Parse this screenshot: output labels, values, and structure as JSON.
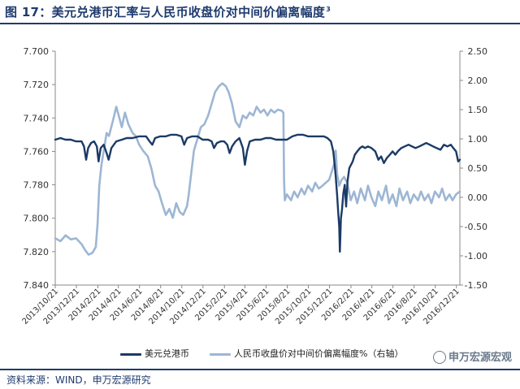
{
  "title": {
    "text": "图 17：美元兑港币汇率与人民币收盘价对中间价偏离幅度",
    "superscript": "3"
  },
  "source": "资料来源：WIND，申万宏源研究",
  "watermark": "申万宏源宏观",
  "colors": {
    "hkd": "#1b3a66",
    "cny": "#9db6d4",
    "accent": "#1f3b6e"
  },
  "chart_data": {
    "type": "line",
    "title": "美元兑港币汇率与人民币收盘价对中间价偏离幅度",
    "left_axis": {
      "ylim": [
        7.84,
        7.7
      ],
      "inverted": true,
      "ticks": [
        "7.700",
        "7.720",
        "7.740",
        "7.760",
        "7.780",
        "7.800",
        "7.820",
        "7.840"
      ]
    },
    "right_axis": {
      "ylim": [
        -1.5,
        2.5
      ],
      "inverted": true,
      "ticks": [
        "-1.50",
        "-1.00",
        "-0.50",
        "0.00",
        "0.50",
        "1.00",
        "1.50",
        "2.00",
        "2.50"
      ]
    },
    "x_ticks": [
      "2013/10/21",
      "2013/12/21",
      "2014/2/21",
      "2014/4/21",
      "2014/6/21",
      "2014/8/21",
      "2014/10/21",
      "2014/12/21",
      "2015/2/21",
      "2015/4/21",
      "2015/6/21",
      "2015/8/21",
      "2015/10/21",
      "2015/12/21",
      "2016/2/21",
      "2016/4/21",
      "2016/6/21",
      "2016/8/21",
      "2016/10/21",
      "2016/12/21"
    ],
    "x_range": [
      "2013-10-21",
      "2016-12-31"
    ],
    "legend_position": "bottom",
    "grid": false,
    "series": [
      {
        "name": "美元兑港币",
        "axis": "left",
        "color": "#1b3a66",
        "points": [
          [
            "2013-10-21",
            7.753
          ],
          [
            "2013-11-05",
            7.752
          ],
          [
            "2013-11-20",
            7.753
          ],
          [
            "2013-12-05",
            7.753
          ],
          [
            "2013-12-20",
            7.754
          ],
          [
            "2014-01-05",
            7.754
          ],
          [
            "2014-01-12",
            7.757
          ],
          [
            "2014-01-18",
            7.765
          ],
          [
            "2014-01-24",
            7.758
          ],
          [
            "2014-02-01",
            7.755
          ],
          [
            "2014-02-10",
            7.754
          ],
          [
            "2014-02-18",
            7.757
          ],
          [
            "2014-02-23",
            7.766
          ],
          [
            "2014-03-01",
            7.758
          ],
          [
            "2014-03-10",
            7.756
          ],
          [
            "2014-03-18",
            7.761
          ],
          [
            "2014-03-24",
            7.765
          ],
          [
            "2014-04-01",
            7.758
          ],
          [
            "2014-04-15",
            7.754
          ],
          [
            "2014-05-01",
            7.753
          ],
          [
            "2014-05-15",
            7.752
          ],
          [
            "2014-06-01",
            7.752
          ],
          [
            "2014-06-20",
            7.751
          ],
          [
            "2014-07-10",
            7.751
          ],
          [
            "2014-07-20",
            7.754
          ],
          [
            "2014-07-28",
            7.756
          ],
          [
            "2014-08-05",
            7.752
          ],
          [
            "2014-08-20",
            7.751
          ],
          [
            "2014-09-05",
            7.751
          ],
          [
            "2014-09-20",
            7.75
          ],
          [
            "2014-10-05",
            7.75
          ],
          [
            "2014-10-20",
            7.751
          ],
          [
            "2014-10-28",
            7.756
          ],
          [
            "2014-11-05",
            7.752
          ],
          [
            "2014-11-20",
            7.751
          ],
          [
            "2014-12-05",
            7.751
          ],
          [
            "2014-12-20",
            7.753
          ],
          [
            "2015-01-05",
            7.753
          ],
          [
            "2015-01-15",
            7.754
          ],
          [
            "2015-01-22",
            7.758
          ],
          [
            "2015-01-30",
            7.755
          ],
          [
            "2015-02-10",
            7.754
          ],
          [
            "2015-02-20",
            7.754
          ],
          [
            "2015-03-01",
            7.756
          ],
          [
            "2015-03-08",
            7.761
          ],
          [
            "2015-03-15",
            7.757
          ],
          [
            "2015-03-25",
            7.754
          ],
          [
            "2015-04-05",
            7.752
          ],
          [
            "2015-04-15",
            7.758
          ],
          [
            "2015-04-21",
            7.768
          ],
          [
            "2015-04-27",
            7.76
          ],
          [
            "2015-05-05",
            7.754
          ],
          [
            "2015-05-20",
            7.753
          ],
          [
            "2015-06-05",
            7.753
          ],
          [
            "2015-06-20",
            7.752
          ],
          [
            "2015-07-05",
            7.752
          ],
          [
            "2015-07-20",
            7.753
          ],
          [
            "2015-08-05",
            7.753
          ],
          [
            "2015-08-20",
            7.753
          ],
          [
            "2015-09-05",
            7.751
          ],
          [
            "2015-09-20",
            7.75
          ],
          [
            "2015-10-05",
            7.75
          ],
          [
            "2015-10-20",
            7.751
          ],
          [
            "2015-11-05",
            7.751
          ],
          [
            "2015-11-20",
            7.751
          ],
          [
            "2015-12-05",
            7.751
          ],
          [
            "2015-12-15",
            7.752
          ],
          [
            "2015-12-25",
            7.754
          ],
          [
            "2016-01-01",
            7.76
          ],
          [
            "2016-01-05",
            7.768
          ],
          [
            "2016-01-08",
            7.775
          ],
          [
            "2016-01-12",
            7.786
          ],
          [
            "2016-01-15",
            7.796
          ],
          [
            "2016-01-18",
            7.805
          ],
          [
            "2016-01-20",
            7.82
          ],
          [
            "2016-01-23",
            7.8
          ],
          [
            "2016-01-26",
            7.795
          ],
          [
            "2016-01-30",
            7.785
          ],
          [
            "2016-02-03",
            7.78
          ],
          [
            "2016-02-07",
            7.793
          ],
          [
            "2016-02-11",
            7.778
          ],
          [
            "2016-02-16",
            7.77
          ],
          [
            "2016-02-21",
            7.768
          ],
          [
            "2016-02-26",
            7.766
          ],
          [
            "2016-03-03",
            7.762
          ],
          [
            "2016-03-10",
            7.76
          ],
          [
            "2016-03-18",
            7.758
          ],
          [
            "2016-03-25",
            7.757
          ],
          [
            "2016-04-01",
            7.758
          ],
          [
            "2016-04-10",
            7.757
          ],
          [
            "2016-04-20",
            7.758
          ],
          [
            "2016-05-01",
            7.76
          ],
          [
            "2016-05-10",
            7.765
          ],
          [
            "2016-05-18",
            7.763
          ],
          [
            "2016-05-26",
            7.767
          ],
          [
            "2016-06-03",
            7.764
          ],
          [
            "2016-06-12",
            7.762
          ],
          [
            "2016-06-20",
            7.76
          ],
          [
            "2016-06-28",
            7.762
          ],
          [
            "2016-07-05",
            7.76
          ],
          [
            "2016-07-15",
            7.758
          ],
          [
            "2016-07-25",
            7.757
          ],
          [
            "2016-08-05",
            7.756
          ],
          [
            "2016-08-15",
            7.757
          ],
          [
            "2016-08-25",
            7.758
          ],
          [
            "2016-09-05",
            7.757
          ],
          [
            "2016-09-15",
            7.756
          ],
          [
            "2016-09-25",
            7.755
          ],
          [
            "2016-10-05",
            7.756
          ],
          [
            "2016-10-15",
            7.757
          ],
          [
            "2016-10-25",
            7.758
          ],
          [
            "2016-11-05",
            7.759
          ],
          [
            "2016-11-15",
            7.756
          ],
          [
            "2016-11-25",
            7.757
          ],
          [
            "2016-12-05",
            7.756
          ],
          [
            "2016-12-12",
            7.758
          ],
          [
            "2016-12-20",
            7.76
          ],
          [
            "2016-12-26",
            7.766
          ],
          [
            "2016-12-31",
            7.765
          ]
        ]
      },
      {
        "name": "人民币收盘价对中间价偏离幅度%（右轴）",
        "axis": "right",
        "color": "#9db6d4",
        "points": [
          [
            "2013-10-21",
            -0.7
          ],
          [
            "2013-11-05",
            -0.75
          ],
          [
            "2013-11-20",
            -0.65
          ],
          [
            "2013-12-05",
            -0.72
          ],
          [
            "2013-12-20",
            -0.7
          ],
          [
            "2014-01-05",
            -0.8
          ],
          [
            "2014-01-15",
            -0.9
          ],
          [
            "2014-01-25",
            -0.98
          ],
          [
            "2014-02-05",
            -0.95
          ],
          [
            "2014-02-15",
            -0.85
          ],
          [
            "2014-02-20",
            -0.45
          ],
          [
            "2014-02-25",
            0.2
          ],
          [
            "2014-03-03",
            0.55
          ],
          [
            "2014-03-10",
            0.8
          ],
          [
            "2014-03-18",
            1.1
          ],
          [
            "2014-03-25",
            1.05
          ],
          [
            "2014-04-05",
            1.3
          ],
          [
            "2014-04-15",
            1.55
          ],
          [
            "2014-04-22",
            1.4
          ],
          [
            "2014-05-01",
            1.2
          ],
          [
            "2014-05-10",
            1.45
          ],
          [
            "2014-05-20",
            1.25
          ],
          [
            "2014-06-01",
            1.1
          ],
          [
            "2014-06-10",
            1.05
          ],
          [
            "2014-06-20",
            0.9
          ],
          [
            "2014-07-01",
            0.8
          ],
          [
            "2014-07-15",
            0.7
          ],
          [
            "2014-07-25",
            0.5
          ],
          [
            "2014-08-05",
            0.2
          ],
          [
            "2014-08-15",
            0.1
          ],
          [
            "2014-08-25",
            -0.1
          ],
          [
            "2014-09-05",
            -0.3
          ],
          [
            "2014-09-15",
            -0.2
          ],
          [
            "2014-09-25",
            -0.35
          ],
          [
            "2014-10-05",
            -0.1
          ],
          [
            "2014-10-15",
            -0.25
          ],
          [
            "2014-10-25",
            -0.3
          ],
          [
            "2014-11-05",
            -0.15
          ],
          [
            "2014-11-10",
            0.05
          ],
          [
            "2014-11-15",
            0.3
          ],
          [
            "2014-11-25",
            0.8
          ],
          [
            "2014-12-05",
            1.0
          ],
          [
            "2014-12-15",
            1.2
          ],
          [
            "2014-12-25",
            1.25
          ],
          [
            "2015-01-05",
            1.4
          ],
          [
            "2015-01-15",
            1.6
          ],
          [
            "2015-01-25",
            1.8
          ],
          [
            "2015-02-05",
            1.9
          ],
          [
            "2015-02-15",
            1.95
          ],
          [
            "2015-02-25",
            1.9
          ],
          [
            "2015-03-05",
            1.8
          ],
          [
            "2015-03-15",
            1.6
          ],
          [
            "2015-03-25",
            1.3
          ],
          [
            "2015-04-05",
            1.2
          ],
          [
            "2015-04-15",
            1.4
          ],
          [
            "2015-04-25",
            1.35
          ],
          [
            "2015-05-05",
            1.45
          ],
          [
            "2015-05-15",
            1.4
          ],
          [
            "2015-05-25",
            1.55
          ],
          [
            "2015-06-05",
            1.45
          ],
          [
            "2015-06-15",
            1.5
          ],
          [
            "2015-06-25",
            1.4
          ],
          [
            "2015-07-05",
            1.5
          ],
          [
            "2015-07-15",
            1.45
          ],
          [
            "2015-07-25",
            1.5
          ],
          [
            "2015-08-05",
            1.48
          ],
          [
            "2015-08-10",
            1.45
          ],
          [
            "2015-08-12",
            0.3
          ],
          [
            "2015-08-14",
            -0.05
          ],
          [
            "2015-08-20",
            0.05
          ],
          [
            "2015-09-01",
            -0.05
          ],
          [
            "2015-09-10",
            0.1
          ],
          [
            "2015-09-20",
            0.0
          ],
          [
            "2015-10-01",
            0.15
          ],
          [
            "2015-10-10",
            0.05
          ],
          [
            "2015-10-20",
            0.2
          ],
          [
            "2015-11-01",
            0.1
          ],
          [
            "2015-11-10",
            0.25
          ],
          [
            "2015-11-20",
            0.15
          ],
          [
            "2015-12-01",
            0.2
          ],
          [
            "2015-12-10",
            0.25
          ],
          [
            "2015-12-20",
            0.3
          ],
          [
            "2015-12-28",
            0.45
          ],
          [
            "2016-01-05",
            0.6
          ],
          [
            "2016-01-08",
            0.8
          ],
          [
            "2016-01-12",
            0.4
          ],
          [
            "2016-01-18",
            0.2
          ],
          [
            "2016-01-25",
            0.3
          ],
          [
            "2016-02-01",
            0.35
          ],
          [
            "2016-02-10",
            0.25
          ],
          [
            "2016-02-20",
            -0.05
          ],
          [
            "2016-03-01",
            0.1
          ],
          [
            "2016-03-10",
            -0.1
          ],
          [
            "2016-03-20",
            0.15
          ],
          [
            "2016-04-01",
            -0.05
          ],
          [
            "2016-04-10",
            0.2
          ],
          [
            "2016-04-20",
            0.0
          ],
          [
            "2016-05-01",
            -0.15
          ],
          [
            "2016-05-10",
            0.1
          ],
          [
            "2016-05-20",
            -0.05
          ],
          [
            "2016-06-01",
            0.2
          ],
          [
            "2016-06-10",
            -0.1
          ],
          [
            "2016-06-20",
            0.05
          ],
          [
            "2016-07-01",
            -0.15
          ],
          [
            "2016-07-10",
            0.15
          ],
          [
            "2016-07-20",
            -0.05
          ],
          [
            "2016-08-01",
            0.1
          ],
          [
            "2016-08-10",
            -0.1
          ],
          [
            "2016-08-20",
            0.05
          ],
          [
            "2016-09-01",
            -0.05
          ],
          [
            "2016-09-10",
            0.1
          ],
          [
            "2016-09-20",
            -0.05
          ],
          [
            "2016-10-01",
            0.05
          ],
          [
            "2016-10-10",
            -0.1
          ],
          [
            "2016-10-20",
            0.1
          ],
          [
            "2016-11-01",
            0.0
          ],
          [
            "2016-11-10",
            0.15
          ],
          [
            "2016-11-20",
            -0.05
          ],
          [
            "2016-12-01",
            0.05
          ],
          [
            "2016-12-10",
            -0.05
          ],
          [
            "2016-12-20",
            0.05
          ],
          [
            "2016-12-31",
            0.1
          ]
        ]
      }
    ]
  }
}
